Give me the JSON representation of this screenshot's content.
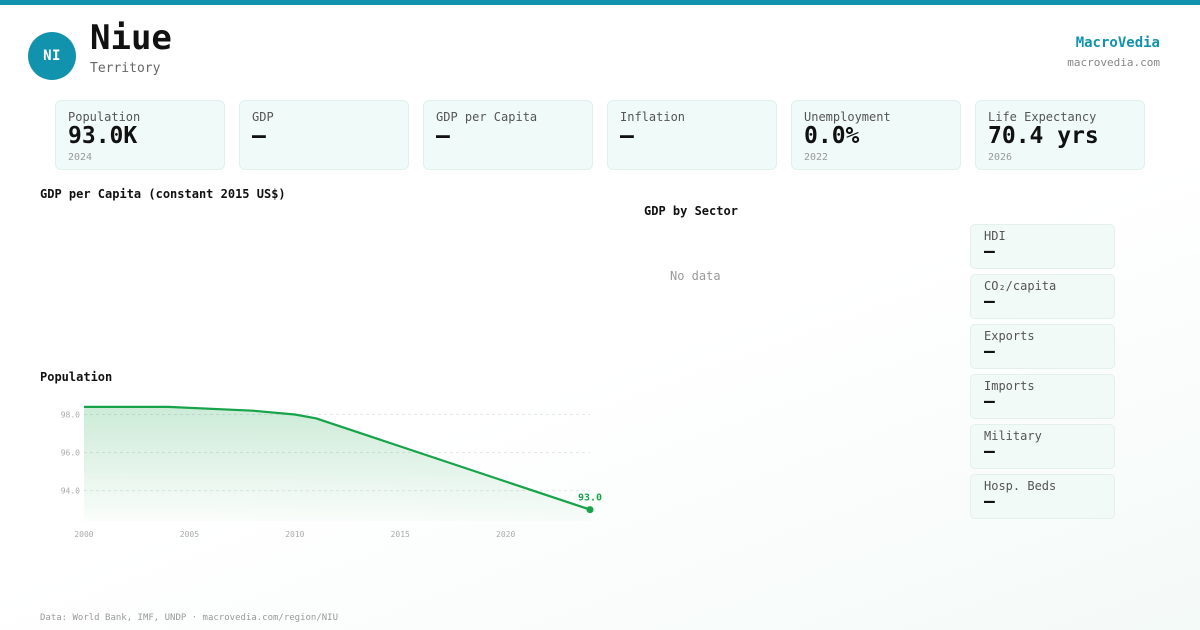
{
  "header": {
    "avatar_initials": "NI",
    "name": "Niue",
    "type": "Territory",
    "brand": "MacroVedia",
    "brand_url": "macrovedia.com"
  },
  "kpis": [
    {
      "label": "Population",
      "value": "93.0K",
      "year": "2024"
    },
    {
      "label": "GDP",
      "value": "—",
      "year": ""
    },
    {
      "label": "GDP per Capita",
      "value": "—",
      "year": ""
    },
    {
      "label": "Inflation",
      "value": "—",
      "year": ""
    },
    {
      "label": "Unemployment",
      "value": "0.0%",
      "year": "2022"
    },
    {
      "label": "Life Expectancy",
      "value": "70.4 yrs",
      "year": "2026"
    }
  ],
  "sections": {
    "gdp_per_capita_title": "GDP per Capita (constant 2015 US$)",
    "gdp_by_sector_title": "GDP by Sector",
    "gdp_by_sector_empty": "No data",
    "population_title": "Population"
  },
  "side_metrics": [
    {
      "label": "HDI",
      "value": "—"
    },
    {
      "label": "CO₂/capita",
      "value": "—"
    },
    {
      "label": "Exports",
      "value": "—"
    },
    {
      "label": "Imports",
      "value": "—"
    },
    {
      "label": "Military",
      "value": "—"
    },
    {
      "label": "Hosp. Beds",
      "value": "—"
    }
  ],
  "footer": "Data: World Bank, IMF, UNDP · macrovedia.com/region/NIU",
  "colors": {
    "accent": "#1192ad",
    "line": "#16a34a",
    "card_bg": "#f0faf8"
  },
  "chart_data": {
    "type": "area",
    "title": "Population",
    "x": [
      2000,
      2004,
      2008,
      2010,
      2011,
      2024
    ],
    "y": [
      98.4,
      98.4,
      98.2,
      98.0,
      97.8,
      93.0
    ],
    "xticks": [
      2000,
      2005,
      2010,
      2015,
      2020
    ],
    "yticks": [
      94.0,
      96.0,
      98.0
    ],
    "xlim": [
      2000,
      2024
    ],
    "ylim": [
      92.4,
      98.5
    ],
    "end_label": "93.0",
    "grid": "horizontal dashed"
  }
}
